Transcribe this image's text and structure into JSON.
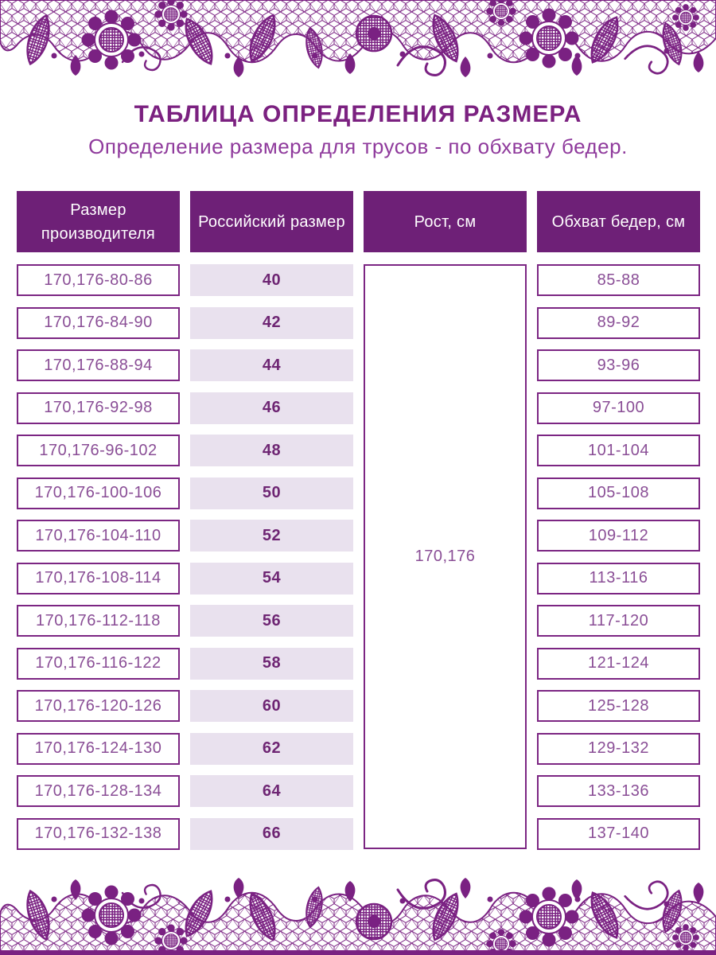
{
  "header": {
    "title": "ТАБЛИЦА ОПРЕДЕЛЕНИЯ РАЗМЕРА",
    "subtitle": "Определение размера для трусов - по обхвату бедер."
  },
  "table": {
    "columns": [
      {
        "label": "Размер производителя"
      },
      {
        "label": "Российский размер"
      },
      {
        "label": "Рост, см"
      },
      {
        "label": "Обхват бедер, см"
      }
    ],
    "height_value": "170,176",
    "rows": [
      {
        "manufacturer_size": "170,176-80-86",
        "russian_size": "40",
        "hips": "85-88"
      },
      {
        "manufacturer_size": "170,176-84-90",
        "russian_size": "42",
        "hips": "89-92"
      },
      {
        "manufacturer_size": "170,176-88-94",
        "russian_size": "44",
        "hips": "93-96"
      },
      {
        "manufacturer_size": "170,176-92-98",
        "russian_size": "46",
        "hips": "97-100"
      },
      {
        "manufacturer_size": "170,176-96-102",
        "russian_size": "48",
        "hips": "101-104"
      },
      {
        "manufacturer_size": "170,176-100-106",
        "russian_size": "50",
        "hips": "105-108"
      },
      {
        "manufacturer_size": "170,176-104-110",
        "russian_size": "52",
        "hips": "109-112"
      },
      {
        "manufacturer_size": "170,176-108-114",
        "russian_size": "54",
        "hips": "113-116"
      },
      {
        "manufacturer_size": "170,176-112-118",
        "russian_size": "56",
        "hips": "117-120"
      },
      {
        "manufacturer_size": "170,176-116-122",
        "russian_size": "58",
        "hips": "121-124"
      },
      {
        "manufacturer_size": "170,176-120-126",
        "russian_size": "60",
        "hips": "125-128"
      },
      {
        "manufacturer_size": "170,176-124-130",
        "russian_size": "62",
        "hips": "129-132"
      },
      {
        "manufacturer_size": "170,176-128-134",
        "russian_size": "64",
        "hips": "133-136"
      },
      {
        "manufacturer_size": "170,176-132-138",
        "russian_size": "66",
        "hips": "137-140"
      }
    ]
  },
  "colors": {
    "lace": "#7A2182",
    "header_bg": "#6E2077",
    "header_text": "#FFFFFF",
    "cell_border": "#7C2683",
    "cell_text": "#8A4E96",
    "russian_bg": "#E9E1EE",
    "russian_text": "#6E2573",
    "title_text": "#7B2180",
    "subtitle_text": "#8F3A9C"
  }
}
